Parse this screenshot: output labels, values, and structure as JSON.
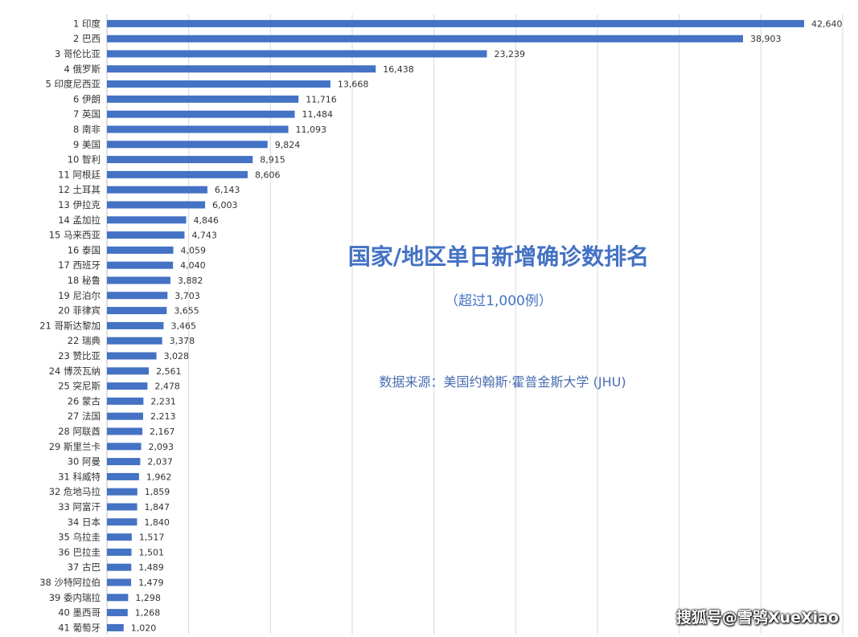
{
  "chart_data": {
    "type": "bar",
    "orientation": "horizontal",
    "title": "国家/地区单日新增确诊数排名",
    "subtitle": "（超过1,000例）",
    "source": "数据来源：美国约翰斯·霍普金斯大学 (JHU)",
    "xlim": [
      0,
      45000
    ],
    "grid": true,
    "bar_color": "#4472c4",
    "categories": [
      "1 印度",
      "2 巴西",
      "3 哥伦比亚",
      "4 俄罗斯",
      "5 印度尼西亚",
      "6 伊朗",
      "7 英国",
      "8 南非",
      "9 美国",
      "10 智利",
      "11 阿根廷",
      "12 土耳其",
      "13 伊拉克",
      "14 孟加拉",
      "15 马来西亚",
      "16 泰国",
      "17 西班牙",
      "18 秘鲁",
      "19 尼泊尔",
      "20 菲律宾",
      "21 哥斯达黎加",
      "22 瑞典",
      "23 赞比亚",
      "24 博茨瓦纳",
      "25 突尼斯",
      "26 蒙古",
      "27 法国",
      "28 阿联酋",
      "29 斯里兰卡",
      "30 阿曼",
      "31 科威特",
      "32 危地马拉",
      "33 阿富汗",
      "34 日本",
      "35 乌拉圭",
      "36 巴拉圭",
      "37 古巴",
      "38 沙特阿拉伯",
      "39 委内瑞拉",
      "40 墨西哥",
      "41 葡萄牙"
    ],
    "values": [
      42640,
      38903,
      23239,
      16438,
      13668,
      11716,
      11484,
      11093,
      9824,
      8915,
      8606,
      6143,
      6003,
      4846,
      4743,
      4059,
      4040,
      3882,
      3703,
      3655,
      3465,
      3378,
      3028,
      2561,
      2478,
      2231,
      2213,
      2167,
      2093,
      2037,
      1962,
      1859,
      1847,
      1840,
      1517,
      1501,
      1489,
      1479,
      1298,
      1268,
      1020
    ]
  },
  "watermark": "搜狐号@雪鸮XueXiao"
}
